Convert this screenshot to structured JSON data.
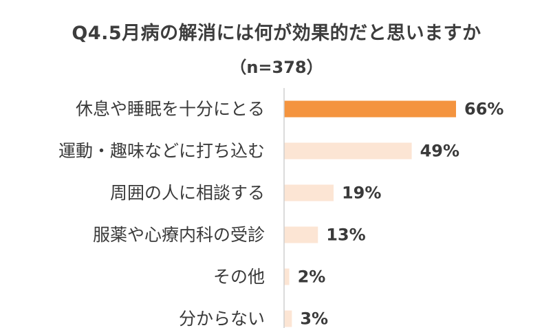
{
  "chart_data": {
    "type": "bar",
    "orientation": "horizontal",
    "title": "Q4.5月病の解消には何が効果的だと思いますか",
    "subtitle": "（n=378）",
    "categories": [
      "休息や睡眠を十分にとる",
      "運動・趣味などに打ち込む",
      "周囲の人に相談する",
      "服薬や心療内科の受診",
      "その他",
      "分からない"
    ],
    "values": [
      66,
      49,
      19,
      13,
      2,
      3
    ],
    "value_labels": [
      "66%",
      "49%",
      "19%",
      "13%",
      "2%",
      "3%"
    ],
    "unit": "%",
    "xlim": [
      0,
      100
    ],
    "grid": false,
    "legend": "none",
    "colors": {
      "highlight": "#f4943f",
      "default": "#fce5d4",
      "axis": "#cfcfcf",
      "label": "#3a3a3a"
    },
    "highlight_index": 0
  }
}
